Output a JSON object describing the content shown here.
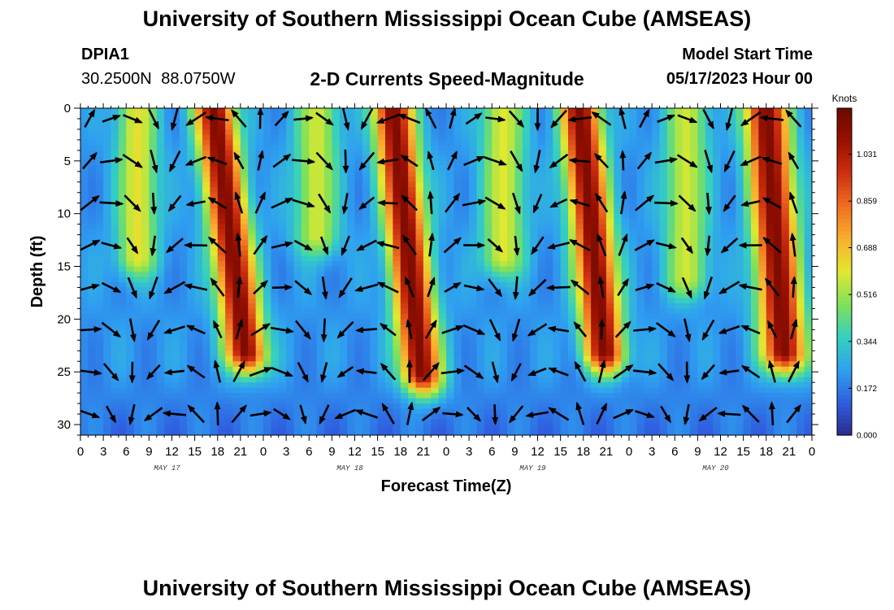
{
  "header": {
    "title": "University of Southern Mississippi Ocean Cube (AMSEAS)",
    "station_id": "DPIA1",
    "station_coords": "30.2500N  88.0750W",
    "subtitle": "2-D Currents Speed-Magnitude",
    "model_start_label": "Model Start Time",
    "model_start_value": "05/17/2023 Hour 00"
  },
  "footer": {
    "title": "University of Southern Mississippi Ocean Cube (AMSEAS)"
  },
  "chart_data": {
    "type": "heatmap",
    "title": "2-D Currents Speed-Magnitude",
    "xlabel": "Forecast Time(Z)",
    "ylabel": "Depth (ft)",
    "x_range_hours": [
      0,
      96
    ],
    "y_range_ft": [
      0,
      31
    ],
    "y_inverted": true,
    "x_tick_hours": [
      0,
      3,
      6,
      9,
      12,
      15,
      18,
      21,
      24,
      27,
      30,
      33,
      36,
      39,
      42,
      45,
      48,
      51,
      54,
      57,
      60,
      63,
      66,
      69,
      72,
      75,
      78,
      81,
      84,
      87,
      90,
      93,
      96
    ],
    "x_tick_labels": [
      "0",
      "3",
      "6",
      "9",
      "12",
      "15",
      "18",
      "21",
      "0",
      "3",
      "6",
      "9",
      "12",
      "15",
      "18",
      "21",
      "0",
      "3",
      "6",
      "9",
      "12",
      "15",
      "18",
      "21",
      "0",
      "3",
      "6",
      "9",
      "12",
      "15",
      "18",
      "21",
      "0"
    ],
    "y_ticks": [
      0,
      5,
      10,
      15,
      20,
      25,
      30
    ],
    "y_tick_labels": [
      "0",
      "5",
      "10",
      "15",
      "20",
      "25",
      "30"
    ],
    "day_labels": [
      {
        "text": "MAY 17",
        "center_hour": 12
      },
      {
        "text": "MAY 18",
        "center_hour": 36
      },
      {
        "text": "MAY 19",
        "center_hour": 60
      },
      {
        "text": "MAY 20",
        "center_hour": 84
      }
    ],
    "colorbar": {
      "title": "Knots",
      "min": 0,
      "max": 1.2,
      "ticks": [
        0.0,
        0.172,
        0.344,
        0.516,
        0.688,
        0.859,
        1.031
      ],
      "tick_labels": [
        "0.000",
        "0.172",
        "0.344",
        "0.516",
        "0.688",
        "0.859",
        "1.031"
      ],
      "colors": [
        "#2a2a8c",
        "#2f5ee0",
        "#2fa0f0",
        "#35d0c0",
        "#7ee05a",
        "#e0e830",
        "#f8b030",
        "#f07020",
        "#d03010",
        "#9a1000",
        "#6a0a00"
      ]
    },
    "speed_plumes": [
      {
        "center_hour": 17.5,
        "peak_knots": 1.15,
        "half_width_hours": 2.6,
        "bottom_depth_ft": 23,
        "tilt_hours_per_ft": 0.18
      },
      {
        "center_hour": 41.0,
        "peak_knots": 1.15,
        "half_width_hours": 2.6,
        "bottom_depth_ft": 25,
        "tilt_hours_per_ft": 0.15
      },
      {
        "center_hour": 65.5,
        "peak_knots": 1.15,
        "half_width_hours": 2.6,
        "bottom_depth_ft": 23,
        "tilt_hours_per_ft": 0.14
      },
      {
        "center_hour": 90.0,
        "peak_knots": 1.15,
        "half_width_hours": 2.8,
        "bottom_depth_ft": 23,
        "tilt_hours_per_ft": 0.1
      },
      {
        "center_hour": 7.5,
        "peak_knots": 0.62,
        "half_width_hours": 2.6,
        "bottom_depth_ft": 14,
        "tilt_hours_per_ft": 0.0
      },
      {
        "center_hour": 31.0,
        "peak_knots": 0.58,
        "half_width_hours": 2.8,
        "bottom_depth_ft": 12,
        "tilt_hours_per_ft": 0.0
      },
      {
        "center_hour": 55.5,
        "peak_knots": 0.6,
        "half_width_hours": 2.8,
        "bottom_depth_ft": 14,
        "tilt_hours_per_ft": 0.0
      },
      {
        "center_hour": 79.5,
        "peak_knots": 0.58,
        "half_width_hours": 2.8,
        "bottom_depth_ft": 16,
        "tilt_hours_per_ft": 0.0
      }
    ],
    "vector_hours": [
      1.2,
      4.0,
      6.8,
      9.6,
      12.4,
      15.2,
      18.0,
      20.8,
      23.6,
      26.4,
      29.2,
      32.0,
      34.8,
      37.6,
      40.4,
      43.2,
      46.0,
      48.8,
      51.6,
      54.4,
      57.2,
      60.0,
      62.8,
      65.6,
      68.4,
      71.2,
      74.0,
      76.8,
      79.6,
      82.4,
      85.2,
      88.0,
      90.8,
      93.6
    ],
    "vector_depths_ft": [
      1,
      5,
      9,
      13,
      17,
      21,
      25,
      29
    ],
    "vector_period_hours": 24.3,
    "vector_phase_hours": 5.5
  }
}
